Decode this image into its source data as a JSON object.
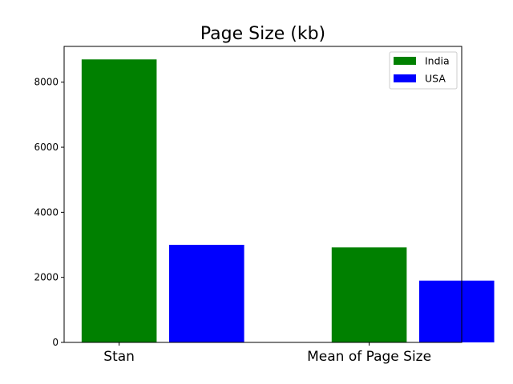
{
  "chart_data": {
    "type": "bar",
    "title": "Page Size (kb)",
    "xlabel": "",
    "ylabel": "",
    "categories": [
      "Stan",
      "Mean of Page Size"
    ],
    "series": [
      {
        "name": "India",
        "color": "#008000",
        "values": [
          8700,
          2920
        ]
      },
      {
        "name": "USA",
        "color": "#0000ff",
        "values": [
          3000,
          1900
        ]
      }
    ],
    "ylim": [
      0,
      9100
    ],
    "yticks": [
      0,
      2000,
      4000,
      6000,
      8000
    ],
    "ytick_labels": [
      "0",
      "2000",
      "4000",
      "6000",
      "8000"
    ],
    "grid": false,
    "legend_position": "top-right"
  }
}
